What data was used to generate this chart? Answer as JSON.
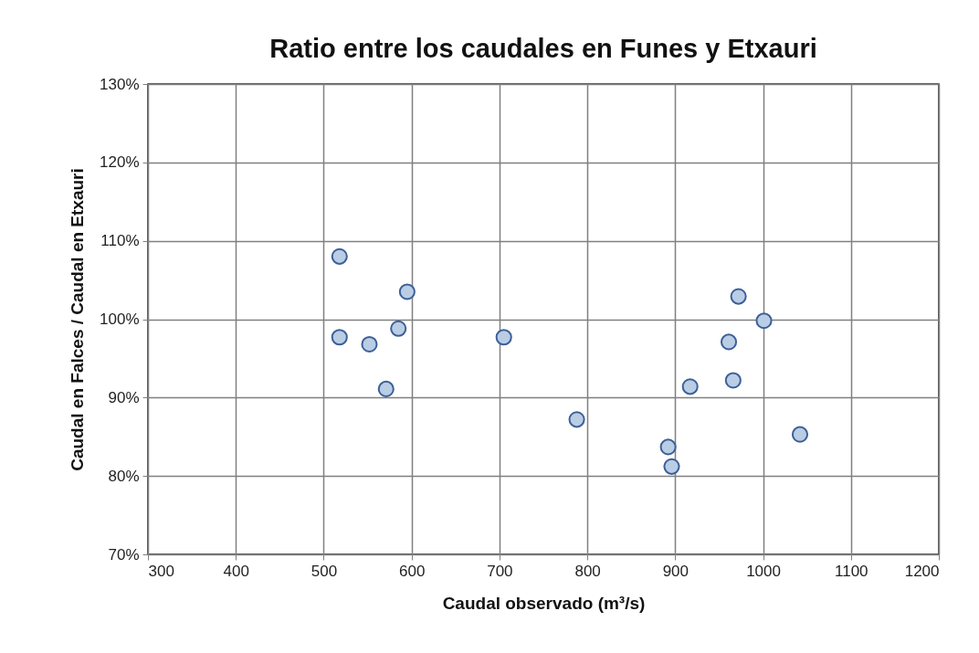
{
  "chart_data": {
    "type": "scatter",
    "title": "Ratio entre los caudales en Funes y Etxauri",
    "xlabel": "Caudal observado (m³/s)",
    "ylabel": "Caudal en Falces / Caudal en Etxauri",
    "x": [
      518,
      595,
      518,
      552,
      585,
      571,
      705,
      788,
      892,
      896,
      917,
      966,
      961,
      972,
      1001,
      1042
    ],
    "series": [
      {
        "color": "#b9cde5",
        "values": [
          108.0,
          103.5,
          97.7,
          96.8,
          98.8,
          91.1,
          97.7,
          87.2,
          83.7,
          81.2,
          91.4,
          92.2,
          97.1,
          102.9,
          99.8,
          85.3
        ]
      }
    ],
    "xlim": [
      300,
      1200
    ],
    "xticks": [
      300,
      400,
      500,
      600,
      700,
      800,
      900,
      1000,
      1100,
      1200
    ],
    "ylim": [
      70,
      130
    ],
    "yticks": [
      {
        "value": 70,
        "label": "70%"
      },
      {
        "value": 80,
        "label": "80%"
      },
      {
        "value": 90,
        "label": "90%"
      },
      {
        "value": 100,
        "label": "100%"
      },
      {
        "value": 110,
        "label": "110%"
      },
      {
        "value": 120,
        "label": "120%"
      },
      {
        "value": 130,
        "label": "130%"
      }
    ],
    "grid": true,
    "marker": "circle"
  }
}
